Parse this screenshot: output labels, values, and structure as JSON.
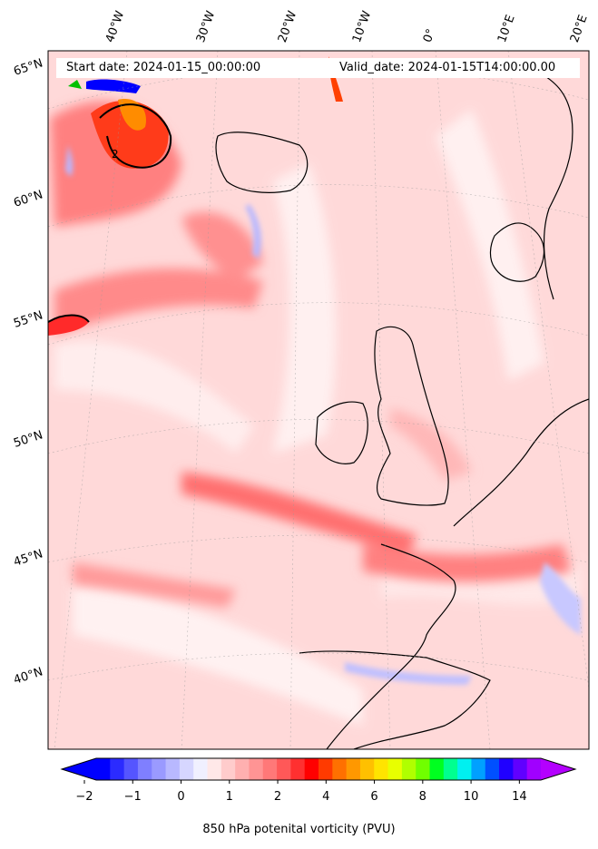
{
  "map": {
    "start_date": "Start date: 2024-01-15_00:00:00",
    "valid_date": "Valid_date: 2024-01-15T14:00:00.00",
    "lon_labels": [
      "40°W",
      "30°W",
      "20°W",
      "10°W",
      "0°",
      "10°E",
      "20°E"
    ],
    "lat_labels": [
      "65°N",
      "60°N",
      "55°N",
      "50°N",
      "45°N",
      "40°N"
    ],
    "contour_label": "2"
  },
  "colorbar": {
    "label": "850 hPa potenital vorticity (PVU)",
    "ticks": [
      "−2",
      "−1",
      "0",
      "1",
      "2",
      "4",
      "6",
      "8",
      "10",
      "14"
    ],
    "colors": [
      "#0000ff",
      "#2b2bff",
      "#5555ff",
      "#7f7fff",
      "#9a9aff",
      "#b8b8ff",
      "#d6d6ff",
      "#f0f0ff",
      "#ffe8e8",
      "#ffcccc",
      "#ffb0b0",
      "#ff9494",
      "#ff7878",
      "#ff5858",
      "#ff3030",
      "#ff0000",
      "#ff3a00",
      "#ff7000",
      "#ff9800",
      "#ffc000",
      "#ffe400",
      "#e8ff00",
      "#b0ff00",
      "#70ff00",
      "#00ff20",
      "#00ff90",
      "#00f0f0",
      "#00a0ff",
      "#0050ff",
      "#2000ff",
      "#6000ff",
      "#a000ff"
    ],
    "under_color": "#0000ff",
    "over_color": "#b400ff"
  }
}
